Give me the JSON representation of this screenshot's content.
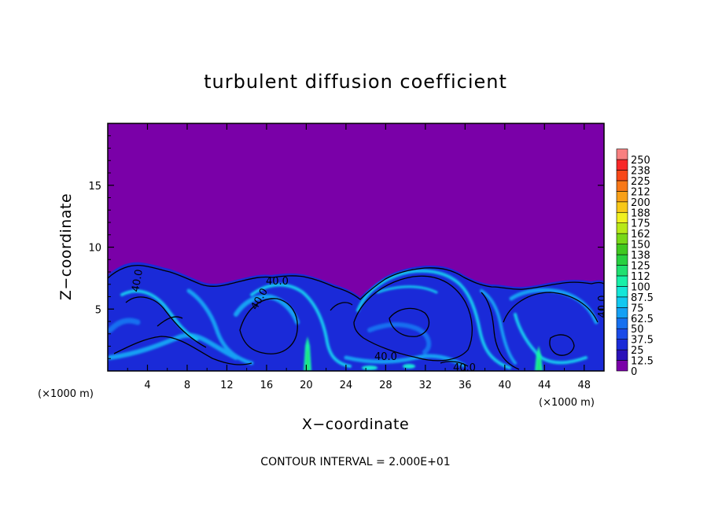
{
  "chart_data": {
    "type": "heatmap",
    "title": "turbulent diffusion coefficient",
    "xlabel": "X−coordinate",
    "ylabel": "Z−coordinate",
    "x_unit": "(×1000 m)",
    "x_unit_right": "(×1000 m)",
    "xlim": [
      0,
      50
    ],
    "ylim": [
      0,
      20
    ],
    "x_ticks": [
      4,
      8,
      12,
      16,
      20,
      24,
      28,
      32,
      36,
      40,
      44,
      48
    ],
    "y_ticks": [
      5,
      10,
      15
    ],
    "colorbar_levels": [
      "0",
      "12.5",
      "25",
      "37.5",
      "50",
      "62.5",
      "75",
      "87.5",
      "100",
      "112",
      "125",
      "138",
      "150",
      "162",
      "175",
      "188",
      "200",
      "212",
      "225",
      "238",
      "250"
    ],
    "colorbar_colors": [
      "#7a00a8",
      "#2a10b8",
      "#1a2ad8",
      "#1a4ae8",
      "#1670f0",
      "#14a0f4",
      "#12c8f0",
      "#14e6d8",
      "#18f0a8",
      "#20e070",
      "#28d040",
      "#40c820",
      "#78d818",
      "#b8e818",
      "#f0f020",
      "#f8c818",
      "#f8a018",
      "#f87818",
      "#f84818",
      "#f82828",
      "#f88080"
    ],
    "contour_interval_text": "CONTOUR INTERVAL = 2.000E+01",
    "contour_labels": [
      "40.0",
      "40.0",
      "40.0",
      "40.0",
      "40.0",
      "40.0"
    ],
    "description_values": {
      "upper_layer_value": 0,
      "turbulent_layer_top_z": 8.5,
      "typical_layer_value": 37.5,
      "peak_values": [
        {
          "x": 20.2,
          "z": 0.5,
          "value": 100
        },
        {
          "x": 43.5,
          "z": 0.5,
          "value": 100
        }
      ]
    }
  }
}
